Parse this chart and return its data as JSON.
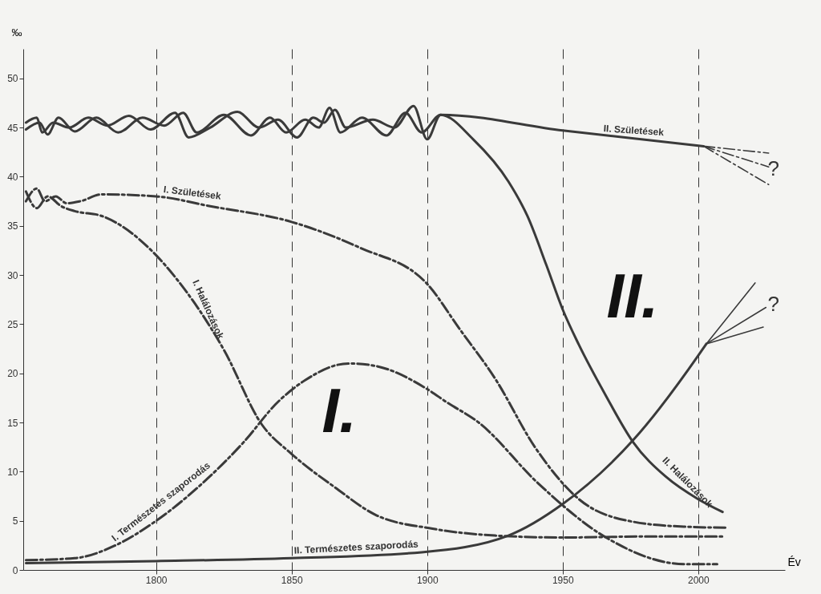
{
  "chart_data": {
    "type": "line",
    "xlabel": "Év",
    "ylabel": "‰",
    "xlim": [
      1751,
      2032
    ],
    "ylim": [
      0,
      53
    ],
    "xticks": [
      1800,
      1850,
      1900,
      1950,
      2000
    ],
    "yticks": [
      0,
      5,
      10,
      15,
      20,
      25,
      30,
      35,
      40,
      45,
      50
    ],
    "grid": "x",
    "series": [
      {
        "name": "II. Születések",
        "color": "#3a3a3a",
        "line_style": "solid",
        "x": [
          1752,
          1756,
          1758,
          1762,
          1768,
          1775,
          1782,
          1790,
          1798,
          1807,
          1812,
          1820,
          1830,
          1838,
          1845,
          1852,
          1858,
          1862,
          1866,
          1870,
          1880,
          1888,
          1895,
          1900,
          1905,
          1950,
          2002
        ],
        "values": [
          45.5,
          46,
          44.5,
          45.5,
          45,
          46,
          45.2,
          46.2,
          44.8,
          46.5,
          44,
          45,
          46.6,
          45,
          45.8,
          44,
          46,
          45.5,
          46.8,
          45,
          45.8,
          45,
          47.2,
          43.8,
          46.3,
          44.7,
          43.1
        ]
      },
      {
        "name": "II. Halálozások",
        "color": "#3a3a3a",
        "line_style": "solid",
        "x": [
          1752,
          1757,
          1760,
          1764,
          1770,
          1778,
          1786,
          1795,
          1803,
          1810,
          1815,
          1825,
          1835,
          1842,
          1848,
          1855,
          1860,
          1864,
          1868,
          1876,
          1885,
          1892,
          1898,
          1905,
          1917,
          1930,
          1937,
          1944,
          1950,
          1956,
          1966,
          1976,
          1988,
          2000,
          2009
        ],
        "values": [
          44.8,
          45.5,
          44.3,
          46,
          44.6,
          46,
          44.5,
          46,
          45.2,
          46.5,
          44.5,
          46.3,
          44.2,
          46,
          44.5,
          45.8,
          45,
          47,
          44.5,
          46,
          44.2,
          46.5,
          44.5,
          46.3,
          43.8,
          39.5,
          36,
          31,
          26.5,
          22.9,
          17.7,
          13,
          9.5,
          7.2,
          5.9
        ]
      },
      {
        "name": "II. Természetes szaporodás",
        "color": "#3a3a3a",
        "line_style": "solid",
        "x": [
          1752,
          1800,
          1850,
          1898,
          1930,
          1950,
          1976,
          2000,
          2003
        ],
        "values": [
          0.7,
          0.9,
          1.2,
          1.8,
          3.5,
          6.7,
          13.2,
          21.8,
          23
        ]
      },
      {
        "name": "I. Születések",
        "color": "#3a3a3a",
        "line_style": "dashed",
        "x": [
          1752,
          1756,
          1759,
          1763,
          1767,
          1772,
          1780,
          1800,
          1820,
          1850,
          1875,
          1900,
          1912,
          1925,
          1940,
          1956,
          1976,
          1995,
          2010
        ],
        "values": [
          37.5,
          38.8,
          37.5,
          38,
          37.3,
          37.5,
          38.2,
          38,
          37,
          35.4,
          32.8,
          29.1,
          24.5,
          19.5,
          12.4,
          7.2,
          4.9,
          4.4,
          4.3
        ]
      },
      {
        "name": "I. Halálozások",
        "color": "#3a3a3a",
        "line_style": "dashed",
        "x": [
          1752,
          1756,
          1760,
          1765,
          1770,
          1780,
          1799,
          1807,
          1825,
          1839,
          1850,
          1866,
          1881,
          1902,
          1925,
          1950,
          1980,
          2010
        ],
        "values": [
          38.5,
          36.8,
          38,
          37,
          36.5,
          36,
          32.3,
          29.8,
          22.4,
          14.8,
          11.8,
          8.4,
          5.6,
          4.2,
          3.5,
          3.3,
          3.4,
          3.4
        ]
      },
      {
        "name": "I. Természetes szaporodás",
        "color": "#3a3a3a",
        "line_style": "dashed",
        "x": [
          1752,
          1770,
          1785,
          1799,
          1819,
          1832,
          1845,
          1855,
          1871,
          1880,
          1900,
          1907,
          1919,
          1941,
          1966,
          1995,
          2007
        ],
        "values": [
          1.0,
          1.2,
          2.5,
          4.8,
          9.3,
          12.9,
          17.1,
          19.3,
          21.0,
          20.8,
          18.4,
          17.1,
          15,
          8.8,
          3.3,
          0.6,
          0.6
        ]
      },
      {
        "color": "#3a3a3a",
        "line_style": "dashed",
        "x": [
          2002,
          2026
        ],
        "values": [
          43.1,
          42.4
        ]
      },
      {
        "color": "#3a3a3a",
        "line_style": "dashed",
        "x": [
          2002,
          2026
        ],
        "values": [
          43.1,
          41.0
        ]
      },
      {
        "color": "#3a3a3a",
        "line_style": "dashed",
        "x": [
          2002,
          2026
        ],
        "values": [
          43.1,
          39.2
        ]
      },
      {
        "color": "#3a3a3a",
        "line_style": "solid",
        "x": [
          2003,
          2021
        ],
        "values": [
          23,
          29.2
        ]
      },
      {
        "color": "#3a3a3a",
        "line_style": "solid",
        "x": [
          2003,
          2025
        ],
        "values": [
          23,
          26.7
        ]
      },
      {
        "color": "#3a3a3a",
        "line_style": "solid",
        "x": [
          2003,
          2024
        ],
        "values": [
          23,
          24.7
        ]
      }
    ],
    "annotations": [
      "I.",
      "II.",
      "?",
      "?"
    ]
  }
}
